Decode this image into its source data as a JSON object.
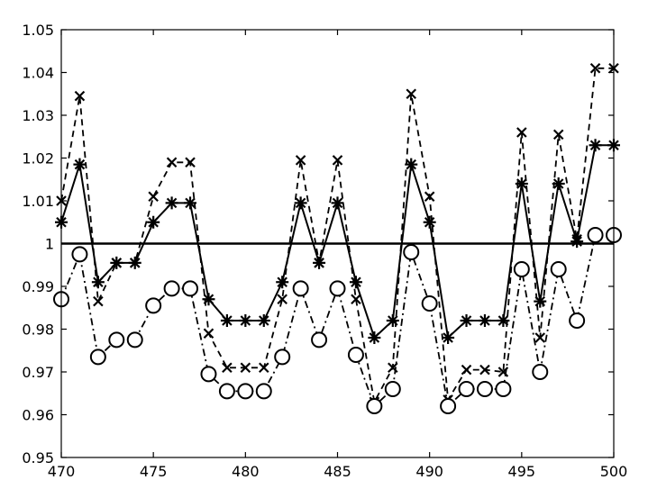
{
  "chart_data": {
    "type": "line",
    "title": "",
    "xlabel": "",
    "ylabel": "",
    "xlim": [
      470,
      500
    ],
    "ylim": [
      0.95,
      1.05
    ],
    "grid": false,
    "legend": "none",
    "x_ticks": [
      470,
      475,
      480,
      485,
      490,
      495,
      500
    ],
    "x_tick_labels": [
      "470",
      "475",
      "480",
      "485",
      "490",
      "495",
      "500"
    ],
    "y_ticks": [
      0.95,
      0.96,
      0.97,
      0.98,
      0.99,
      1.0,
      1.01,
      1.02,
      1.03,
      1.04,
      1.05
    ],
    "y_tick_labels": [
      "0.95",
      "0.96",
      "0.97",
      "0.98",
      "0.99",
      "1",
      "1.01",
      "1.02",
      "1.03",
      "1.04",
      "1.05"
    ],
    "reference_line": {
      "y": 1.0,
      "style": "solid",
      "color": "#000000"
    },
    "series": [
      {
        "line_style": "solid",
        "marker": "asterisk",
        "color": "#000000",
        "x": [
          470,
          471,
          472,
          473,
          474,
          475,
          476,
          477,
          478,
          479,
          480,
          481,
          482,
          483,
          484,
          485,
          486,
          487,
          488,
          489,
          490,
          491,
          492,
          493,
          494,
          495,
          496,
          497,
          498,
          499,
          500
        ],
        "values": [
          1.005,
          1.0185,
          0.991,
          0.9955,
          0.9955,
          1.005,
          1.0095,
          1.0095,
          0.987,
          0.982,
          0.982,
          0.982,
          0.991,
          1.0095,
          0.9955,
          1.0095,
          0.991,
          0.978,
          0.982,
          1.0185,
          1.005,
          0.978,
          0.982,
          0.982,
          0.982,
          1.014,
          0.9865,
          1.014,
          1.0005,
          1.023,
          1.023
        ]
      },
      {
        "line_style": "dashed",
        "marker": "x",
        "color": "#000000",
        "x": [
          470,
          471,
          472,
          473,
          474,
          475,
          476,
          477,
          478,
          479,
          480,
          481,
          482,
          483,
          484,
          485,
          486,
          487,
          488,
          489,
          490,
          491,
          492,
          493,
          494,
          495,
          496,
          497,
          498,
          499,
          500
        ],
        "values": [
          1.01,
          1.0345,
          0.9865,
          0.9955,
          0.9955,
          1.011,
          1.019,
          1.019,
          0.979,
          0.971,
          0.971,
          0.971,
          0.987,
          1.0195,
          0.9955,
          1.0195,
          0.987,
          0.963,
          0.971,
          1.035,
          1.011,
          0.9635,
          0.9705,
          0.9705,
          0.97,
          1.026,
          0.978,
          1.0255,
          1.001,
          1.041,
          1.041
        ]
      },
      {
        "line_style": "dashdot",
        "marker": "circle",
        "color": "#000000",
        "x": [
          470,
          471,
          472,
          473,
          474,
          475,
          476,
          477,
          478,
          479,
          480,
          481,
          482,
          483,
          484,
          485,
          486,
          487,
          488,
          489,
          490,
          491,
          492,
          493,
          494,
          495,
          496,
          497,
          498,
          499,
          500
        ],
        "values": [
          0.987,
          0.9975,
          0.9735,
          0.9775,
          0.9775,
          0.9855,
          0.9895,
          0.9895,
          0.9695,
          0.9655,
          0.9655,
          0.9655,
          0.9735,
          0.9895,
          0.9775,
          0.9895,
          0.974,
          0.962,
          0.966,
          0.998,
          0.986,
          0.962,
          0.966,
          0.966,
          0.966,
          0.994,
          0.97,
          0.994,
          0.982,
          1.002,
          1.002
        ]
      }
    ]
  }
}
